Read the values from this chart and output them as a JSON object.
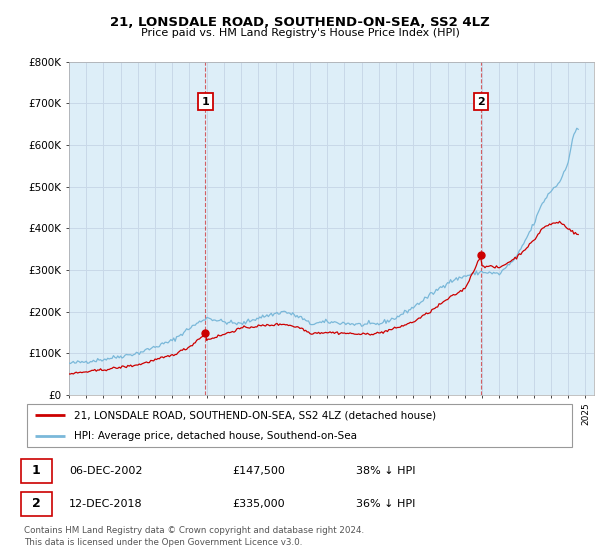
{
  "title": "21, LONSDALE ROAD, SOUTHEND-ON-SEA, SS2 4LZ",
  "subtitle": "Price paid vs. HM Land Registry's House Price Index (HPI)",
  "legend_line1": "21, LONSDALE ROAD, SOUTHEND-ON-SEA, SS2 4LZ (detached house)",
  "legend_line2": "HPI: Average price, detached house, Southend-on-Sea",
  "table_row1": [
    "1",
    "06-DEC-2002",
    "£147,500",
    "38% ↓ HPI"
  ],
  "table_row2": [
    "2",
    "12-DEC-2018",
    "£335,000",
    "36% ↓ HPI"
  ],
  "footnote1": "Contains HM Land Registry data © Crown copyright and database right 2024.",
  "footnote2": "This data is licensed under the Open Government Licence v3.0.",
  "hpi_color": "#7ab8d9",
  "price_color": "#cc0000",
  "vline_color": "#cc0000",
  "marker_color": "#cc0000",
  "background_color": "#ffffff",
  "grid_color": "#c8d8e8",
  "plot_bg_color": "#ddeef8",
  "ylim": [
    0,
    800000
  ],
  "yticks": [
    0,
    100000,
    200000,
    300000,
    400000,
    500000,
    600000,
    700000,
    800000
  ],
  "ytick_labels": [
    "£0",
    "£100K",
    "£200K",
    "£300K",
    "£400K",
    "£500K",
    "£600K",
    "£700K",
    "£800K"
  ],
  "sale1_year": 2002.92,
  "sale1_price": 147500,
  "sale2_year": 2018.95,
  "sale2_price": 335000,
  "xlim_left": 1995.0,
  "xlim_right": 2025.5
}
